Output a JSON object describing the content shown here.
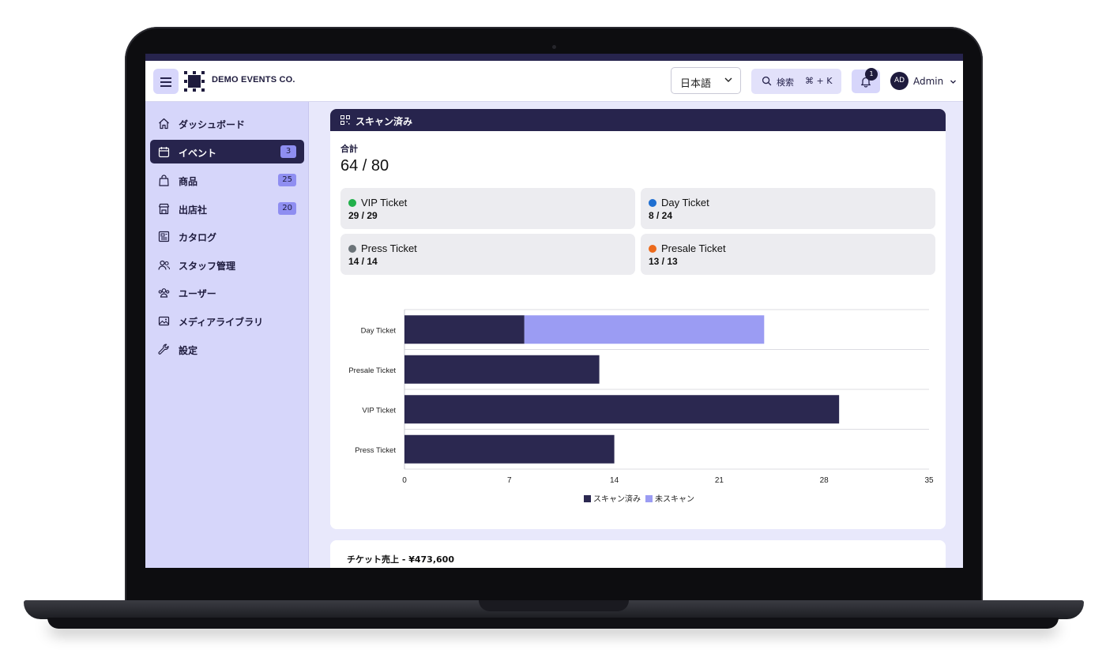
{
  "brand": "DEMO EVENTS CO.",
  "header": {
    "language": "日本語",
    "search_label": "検索",
    "search_shortcut": "⌘ + K",
    "notification_count": "1",
    "avatar_initials": "AD",
    "user_name": "Admin"
  },
  "sidebar": {
    "items": [
      {
        "label": "ダッシュボード",
        "icon": "home-icon",
        "count": null,
        "active": false
      },
      {
        "label": "イベント",
        "icon": "calendar-icon",
        "count": "3",
        "active": true
      },
      {
        "label": "商品",
        "icon": "shopping-bag-icon",
        "count": "25",
        "active": false
      },
      {
        "label": "出店社",
        "icon": "storefront-icon",
        "count": "20",
        "active": false
      },
      {
        "label": "カタログ",
        "icon": "newspaper-icon",
        "count": null,
        "active": false
      },
      {
        "label": "スタッフ管理",
        "icon": "users-icon",
        "count": null,
        "active": false
      },
      {
        "label": "ユーザー",
        "icon": "user-group-icon",
        "count": null,
        "active": false
      },
      {
        "label": "メディアライブラリ",
        "icon": "photo-icon",
        "count": null,
        "active": false
      },
      {
        "label": "設定",
        "icon": "wrench-icon",
        "count": null,
        "active": false
      }
    ]
  },
  "scan_card": {
    "title": "スキャン済み",
    "total_label": "合計",
    "total_value": "64 / 80",
    "tiles": [
      {
        "name": "VIP Ticket",
        "value": "29 / 29",
        "color": "#22b04b"
      },
      {
        "name": "Day Ticket",
        "value": "8 / 24",
        "color": "#1f6fd1"
      },
      {
        "name": "Press Ticket",
        "value": "14 / 14",
        "color": "#6b7378"
      },
      {
        "name": "Presale Ticket",
        "value": "13 / 13",
        "color": "#ec6a1c"
      }
    ]
  },
  "chart_data": {
    "type": "bar",
    "orientation": "horizontal",
    "stacked": true,
    "categories": [
      "Day Ticket",
      "Presale Ticket",
      "VIP Ticket",
      "Press Ticket"
    ],
    "series": [
      {
        "name": "スキャン済み",
        "values": [
          8,
          13,
          29,
          14
        ],
        "color": "#2b2850"
      },
      {
        "name": "未スキャン",
        "values": [
          16,
          0,
          0,
          0
        ],
        "color": "#9b9cf3"
      }
    ],
    "xlim": [
      0,
      35
    ],
    "xticks": [
      "0",
      "7",
      "14",
      "21",
      "28",
      "35"
    ],
    "legend": "bottom-center",
    "grid": "horizontal"
  },
  "sales_card": {
    "title": "チケット売上 - ¥473,600"
  }
}
